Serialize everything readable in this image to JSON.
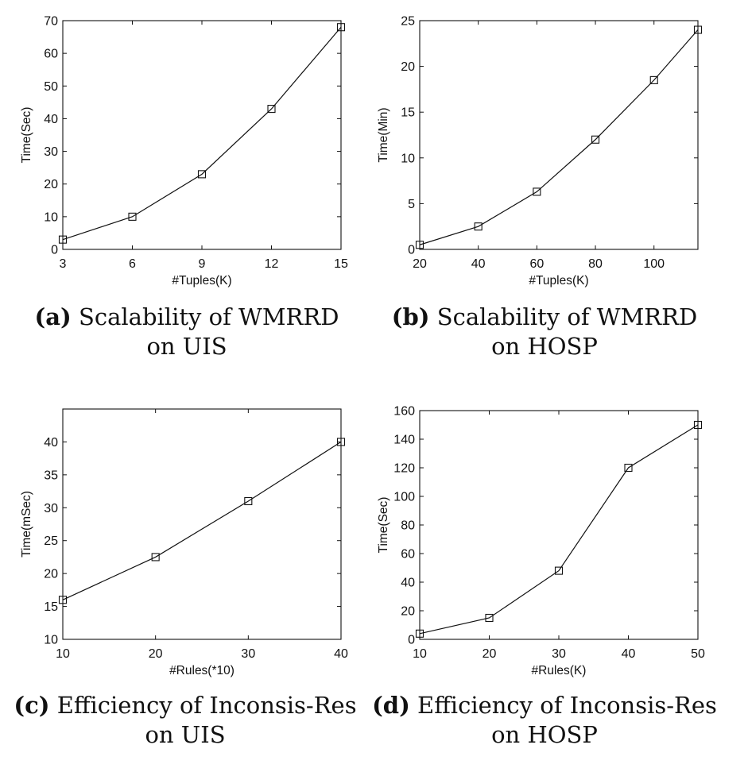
{
  "chart_data": [
    {
      "id": "a",
      "type": "line",
      "caption_tag": "(a)",
      "caption_line1": "Scalability of WMRRD",
      "caption_line2": "on UIS",
      "xlabel": "#Tuples(K)",
      "ylabel": "Time(Sec)",
      "xlim": [
        3,
        15
      ],
      "ylim": [
        0,
        70
      ],
      "xticks": [
        3,
        6,
        9,
        12,
        15
      ],
      "yticks": [
        0,
        10,
        20,
        30,
        40,
        50,
        60,
        70
      ],
      "x": [
        3,
        6,
        9,
        12,
        15
      ],
      "y": [
        3,
        10,
        23,
        43,
        68
      ],
      "marker": "square",
      "grid": false
    },
    {
      "id": "b",
      "type": "line",
      "caption_tag": "(b)",
      "caption_line1": "Scalability of WMRRD",
      "caption_line2": "on HOSP",
      "xlabel": "#Tuples(K)",
      "ylabel": "Time(Min)",
      "xlim": [
        20,
        115
      ],
      "ylim": [
        0,
        25
      ],
      "xticks": [
        20,
        40,
        60,
        80,
        100
      ],
      "yticks": [
        0,
        5,
        10,
        15,
        20,
        25
      ],
      "x": [
        20,
        40,
        60,
        80,
        100,
        115
      ],
      "y": [
        0.5,
        2.5,
        6.3,
        12,
        18.5,
        24
      ],
      "marker": "square",
      "grid": false
    },
    {
      "id": "c",
      "type": "line",
      "caption_tag": "(c)",
      "caption_line1": "Efficiency of Inconsis-Res",
      "caption_line2": "on UIS",
      "xlabel": "#Rules(*10)",
      "ylabel": "Time(mSec)",
      "xlim": [
        10,
        40
      ],
      "ylim": [
        10,
        45
      ],
      "xticks": [
        10,
        20,
        30,
        40
      ],
      "yticks": [
        10,
        15,
        20,
        25,
        30,
        35,
        40
      ],
      "x": [
        10,
        20,
        30,
        40
      ],
      "y": [
        16,
        22.5,
        31,
        40
      ],
      "marker": "square",
      "grid": false
    },
    {
      "id": "d",
      "type": "line",
      "caption_tag": "(d)",
      "caption_line1": "Efficiency of Inconsis-Res",
      "caption_line2": "on HOSP",
      "xlabel": "#Rules(K)",
      "ylabel": "Time(Sec)",
      "xlim": [
        10,
        50
      ],
      "ylim": [
        0,
        160
      ],
      "xticks": [
        10,
        20,
        30,
        40,
        50
      ],
      "yticks": [
        0,
        20,
        40,
        60,
        80,
        100,
        120,
        140,
        160
      ],
      "x": [
        10,
        20,
        30,
        40,
        50
      ],
      "y": [
        4,
        15,
        48,
        120,
        150
      ],
      "marker": "square",
      "grid": false
    }
  ]
}
